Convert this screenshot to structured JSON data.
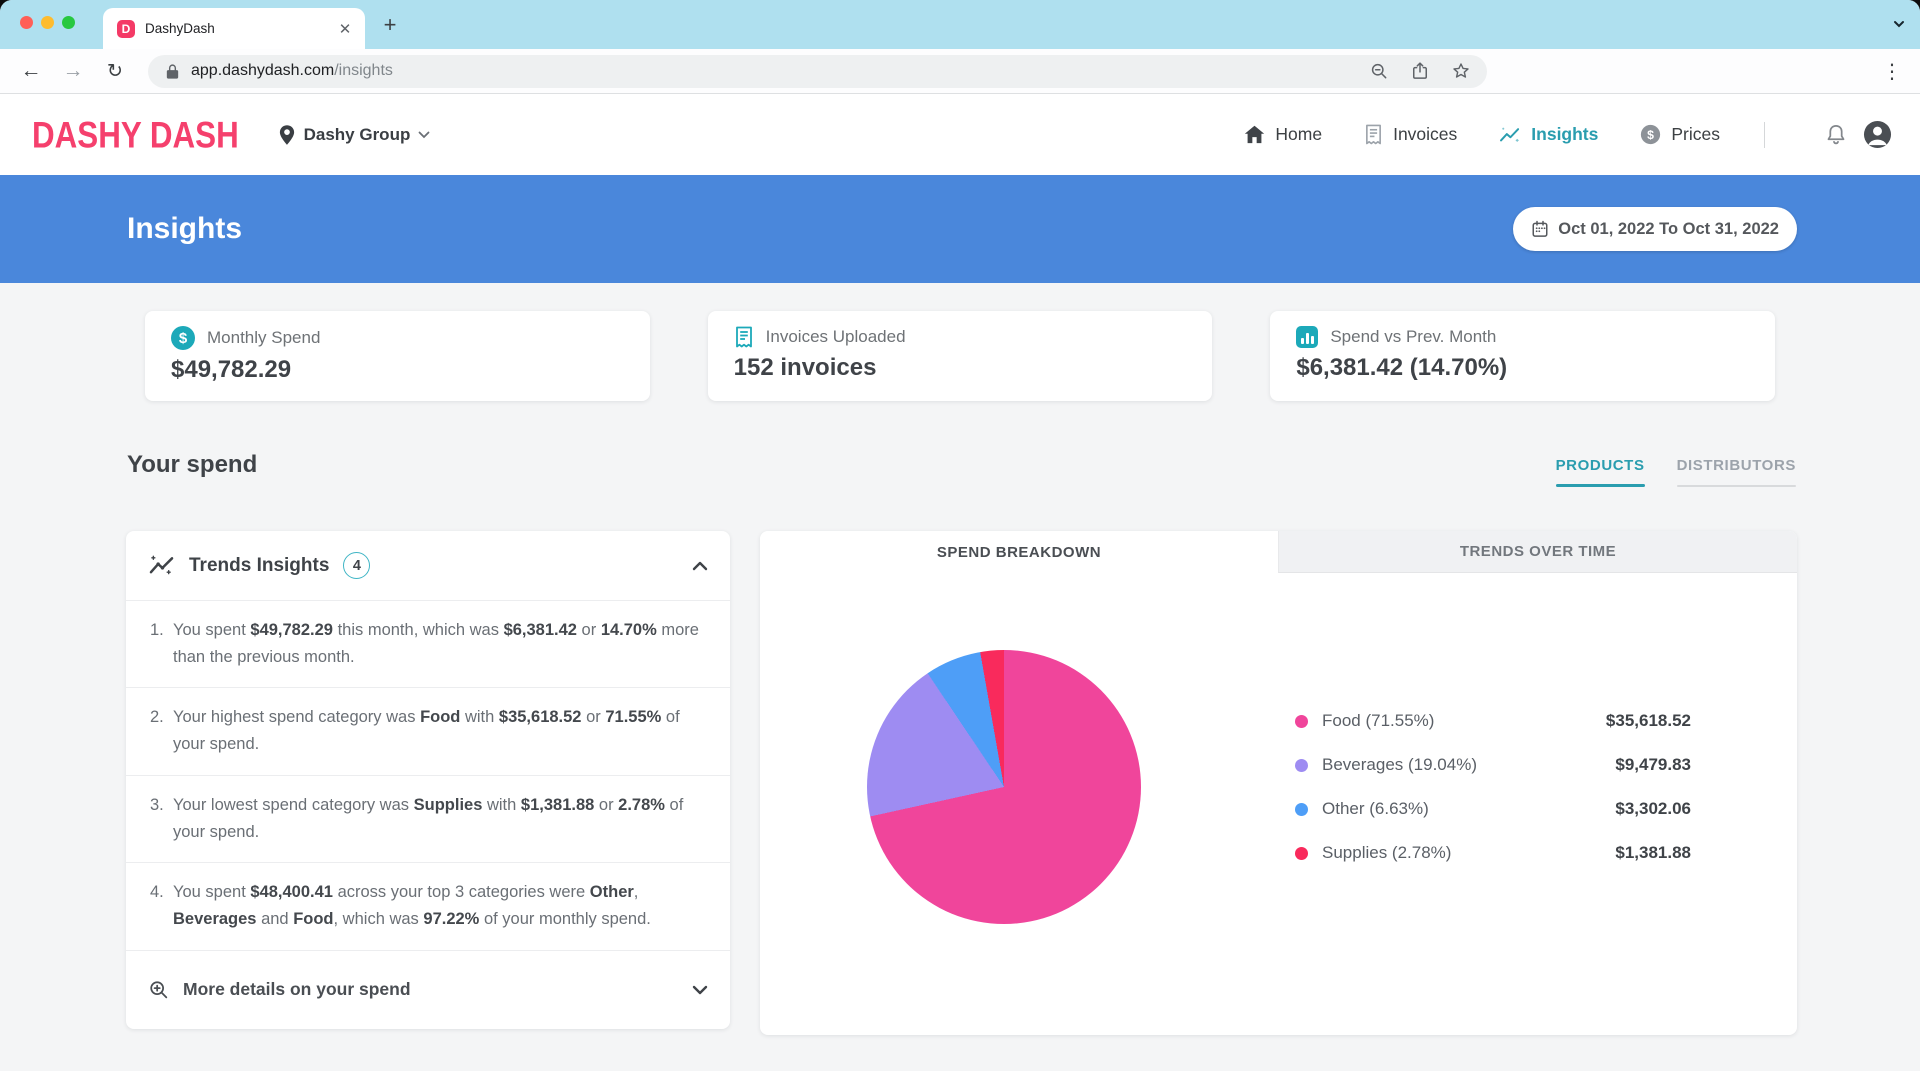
{
  "browser": {
    "tab_title": "DashyDash",
    "favicon_letter": "D",
    "url_host": "app.dashydash.com",
    "url_path": "/insights"
  },
  "header": {
    "logo": "DASHY DASH",
    "location": "Dashy Group",
    "nav": [
      {
        "label": "Home",
        "active": false
      },
      {
        "label": "Invoices",
        "active": false
      },
      {
        "label": "Insights",
        "active": true
      },
      {
        "label": "Prices",
        "active": false
      }
    ]
  },
  "hero": {
    "title": "Insights",
    "date_range": "Oct 01, 2022 To Oct 31, 2022"
  },
  "stats": [
    {
      "label": "Monthly Spend",
      "value": "$49,782.29",
      "icon": "dollar-circle-icon"
    },
    {
      "label": "Invoices Uploaded",
      "value": "152 invoices",
      "icon": "invoice-icon"
    },
    {
      "label": "Spend vs Prev. Month",
      "value": "$6,381.42 (14.70%)",
      "icon": "bar-chart-icon"
    }
  ],
  "spend_section": {
    "title": "Your spend",
    "tabs": [
      {
        "label": "PRODUCTS",
        "active": true
      },
      {
        "label": "DISTRIBUTORS",
        "active": false
      }
    ]
  },
  "trends": {
    "title": "Trends Insights",
    "badge_count": "4",
    "more_details_label": "More details on your spend",
    "items": [
      [
        {
          "t": "You spent "
        },
        {
          "t": "$49,782.29",
          "b": true
        },
        {
          "t": " this month, which was "
        },
        {
          "t": "$6,381.42",
          "b": true
        },
        {
          "t": " or "
        },
        {
          "t": "14.70%",
          "b": true
        },
        {
          "t": " more than the previous month."
        }
      ],
      [
        {
          "t": "Your highest spend category was "
        },
        {
          "t": "Food",
          "b": true
        },
        {
          "t": " with "
        },
        {
          "t": "$35,618.52",
          "b": true
        },
        {
          "t": " or "
        },
        {
          "t": "71.55%",
          "b": true
        },
        {
          "t": " of your spend."
        }
      ],
      [
        {
          "t": "Your lowest spend category was "
        },
        {
          "t": "Supplies",
          "b": true
        },
        {
          "t": " with "
        },
        {
          "t": "$1,381.88",
          "b": true
        },
        {
          "t": " or "
        },
        {
          "t": "2.78%",
          "b": true
        },
        {
          "t": " of your spend."
        }
      ],
      [
        {
          "t": "You spent "
        },
        {
          "t": "$48,400.41",
          "b": true
        },
        {
          "t": " across your top 3 categories were "
        },
        {
          "t": "Other",
          "b": true
        },
        {
          "t": ", "
        },
        {
          "t": "Beverages",
          "b": true
        },
        {
          "t": " and "
        },
        {
          "t": "Food",
          "b": true
        },
        {
          "t": ", which was "
        },
        {
          "t": "97.22%",
          "b": true
        },
        {
          "t": " of your monthly spend."
        }
      ]
    ]
  },
  "breakdown": {
    "tabs": [
      {
        "label": "SPEND BREAKDOWN",
        "active": true
      },
      {
        "label": "TRENDS OVER TIME",
        "active": false
      }
    ],
    "legend": [
      {
        "label": "Food (71.55%)",
        "value": "$35,618.52",
        "color": "#F0459B"
      },
      {
        "label": "Beverages (19.04%)",
        "value": "$9,479.83",
        "color": "#9E8CF2"
      },
      {
        "label": "Other (6.63%)",
        "value": "$3,302.06",
        "color": "#4E9EF7"
      },
      {
        "label": "Supplies (2.78%)",
        "value": "$1,381.88",
        "color": "#F92A5C"
      }
    ]
  },
  "chart_data": {
    "type": "pie",
    "title": "Spend Breakdown",
    "categories": [
      "Food",
      "Beverages",
      "Other",
      "Supplies"
    ],
    "values": [
      35618.52,
      9479.83,
      3302.06,
      1381.88
    ],
    "percentages": [
      71.55,
      19.04,
      6.63,
      2.78
    ],
    "colors": [
      "#F0459B",
      "#9E8CF2",
      "#4E9EF7",
      "#F92A5C"
    ],
    "legend_position": "right",
    "start_angle_deg": 0,
    "direction": "clockwise"
  },
  "colors": {
    "accent_teal": "#2A9DAF",
    "icon_teal": "#1CA9B9",
    "brand_pink": "#F5406D",
    "hero_blue": "#4A87DB",
    "tabstrip_blue": "#AFE0EF"
  }
}
